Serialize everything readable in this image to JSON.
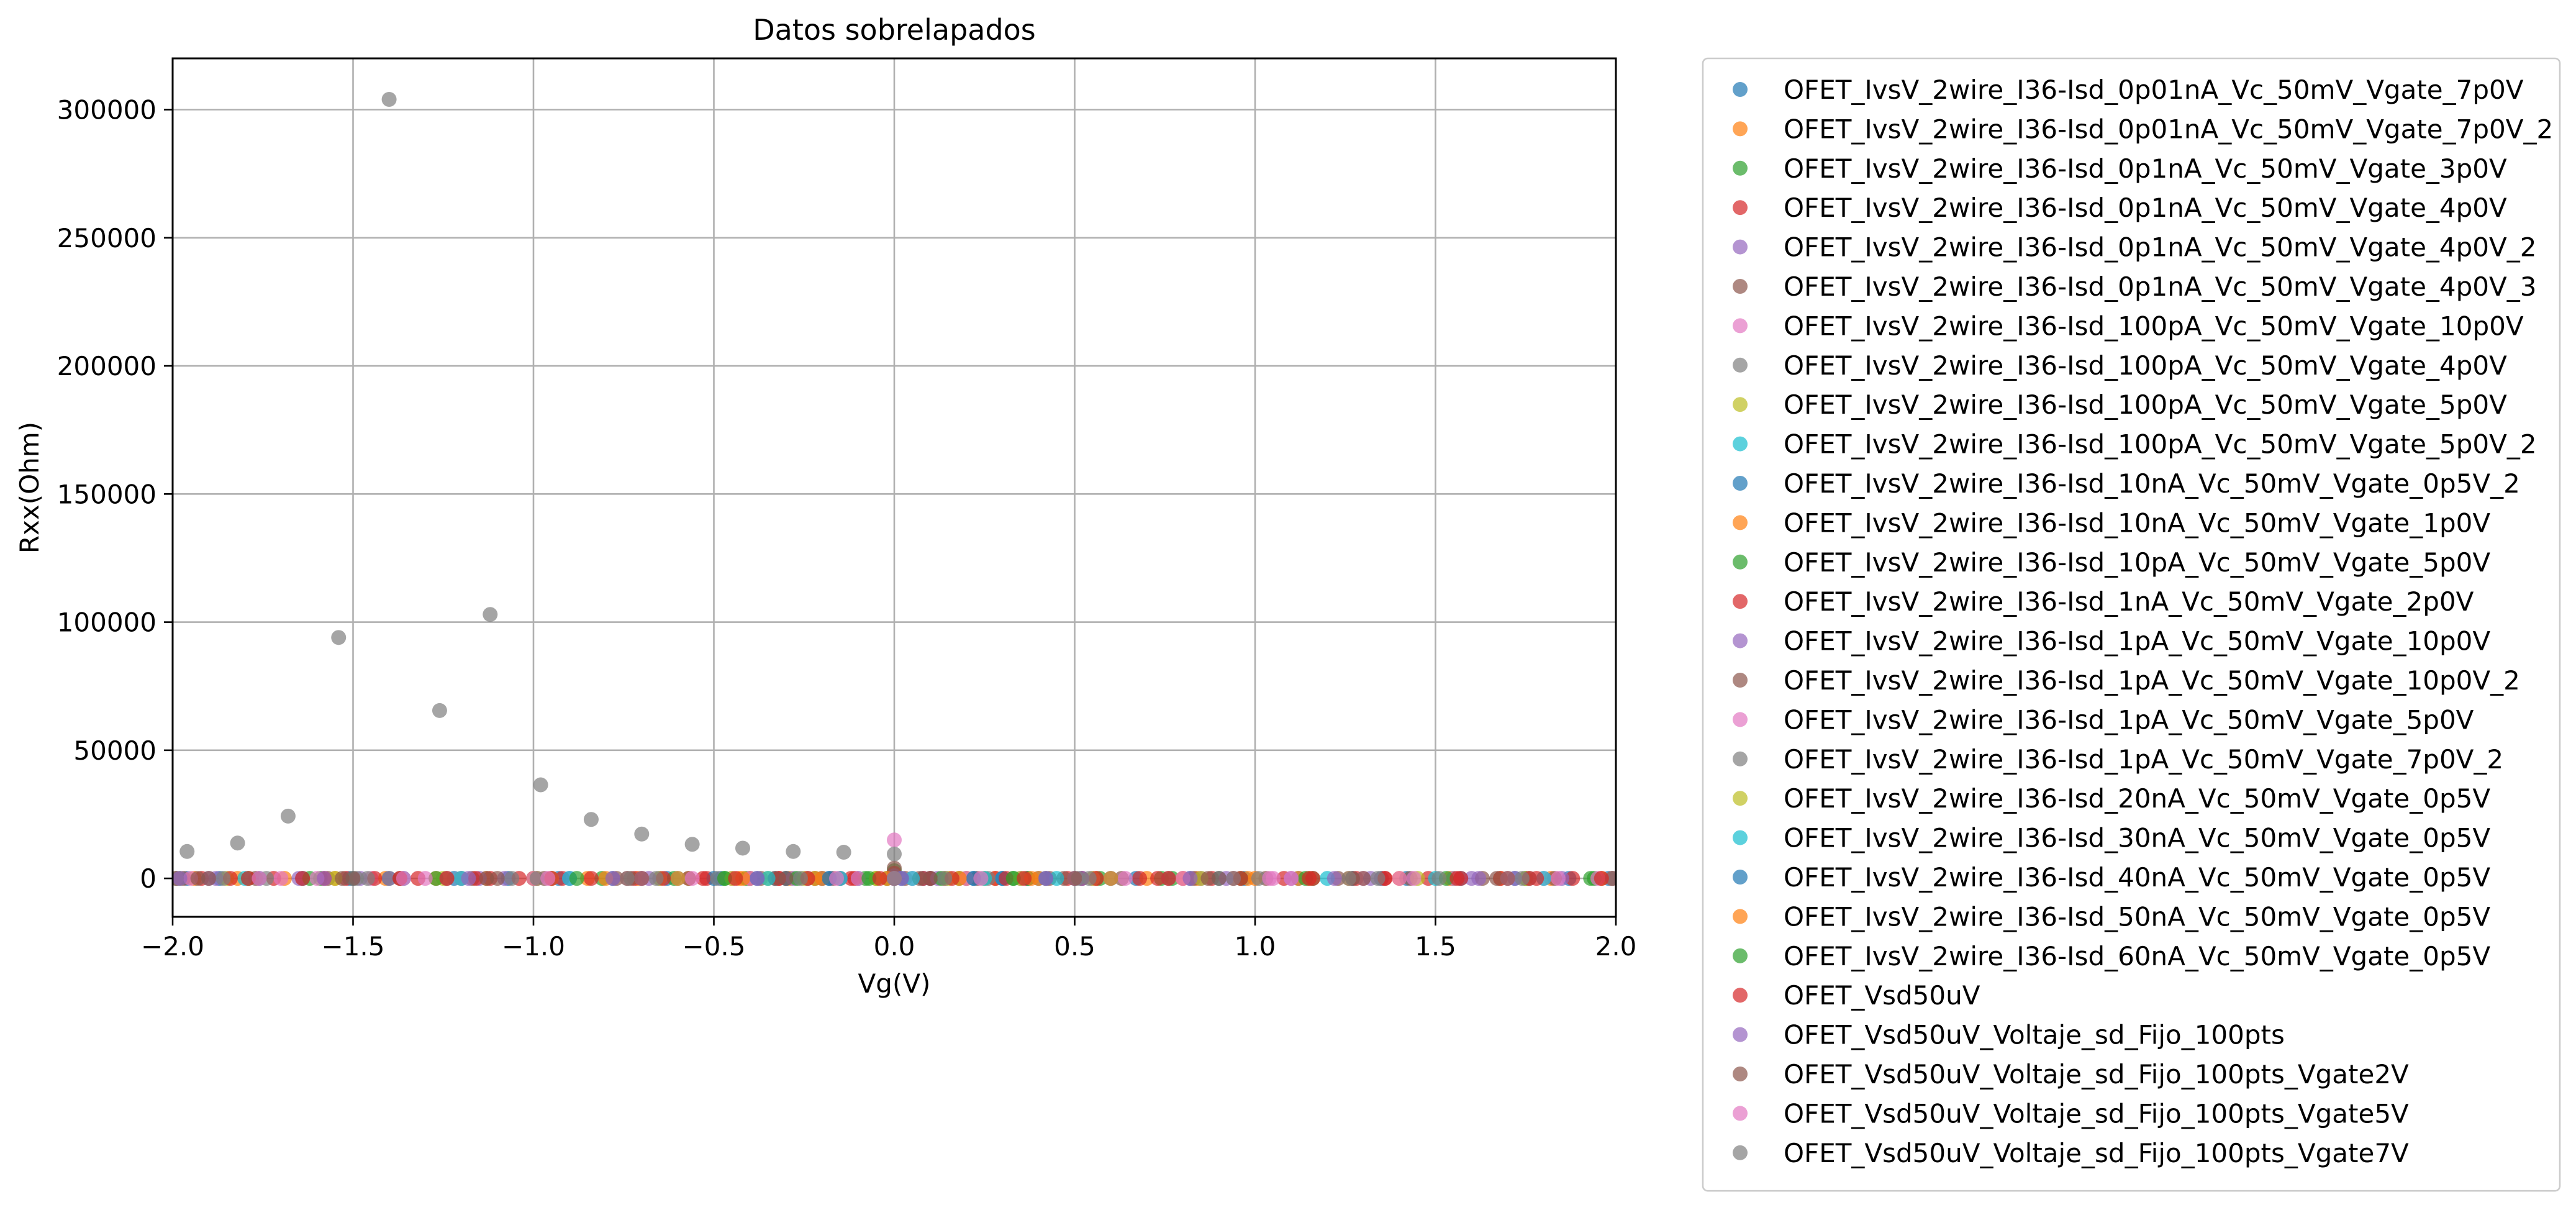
{
  "chart_data": {
    "type": "scatter",
    "title": "Datos sobrelapados",
    "xlabel": "Vg(V)",
    "ylabel": "Rxx(Ohm)",
    "xlim": [
      -2.0,
      2.0
    ],
    "ylim": [
      -15000,
      320000
    ],
    "xticks": [
      -2.0,
      -1.5,
      -1.0,
      -0.5,
      0.0,
      0.5,
      1.0,
      1.5,
      2.0
    ],
    "xtick_labels": [
      "−2.0",
      "−1.5",
      "−1.0",
      "−0.5",
      "0.0",
      "0.5",
      "1.0",
      "1.5",
      "2.0"
    ],
    "yticks": [
      0,
      50000,
      100000,
      150000,
      200000,
      250000,
      300000
    ],
    "ytick_labels": [
      "0",
      "50000",
      "100000",
      "150000",
      "200000",
      "250000",
      "300000"
    ],
    "grid": true,
    "legend_position": "outside-right",
    "series": [
      {
        "name": "OFET_IvsV_2wire_I36-Isd_0p01nA_Vc_50mV_Vgate_7p0V",
        "color": "#1f77b4",
        "x": [
          -1.96,
          -1.87,
          -1.76,
          -1.64,
          -1.51,
          -1.36,
          -1.22,
          -1.07,
          -0.93,
          -0.78,
          -0.63,
          -0.48,
          -0.33,
          -0.18,
          -0.05,
          0.0,
          0.08,
          0.22,
          0.37,
          0.52,
          0.67,
          0.82,
          0.97,
          1.12,
          1.27,
          1.42,
          1.57,
          1.72,
          1.87,
          1.98
        ],
        "y": [
          0,
          0,
          0,
          0,
          0,
          0,
          0,
          0,
          0,
          0,
          0,
          0,
          0,
          0,
          0,
          0,
          0,
          0,
          0,
          0,
          0,
          0,
          0,
          0,
          0,
          0,
          0,
          0,
          0,
          0
        ]
      },
      {
        "name": "OFET_IvsV_2wire_I36-Isd_0p01nA_Vc_50mV_Vgate_7p0V_2",
        "color": "#ff7f0e",
        "x": [
          -1.94,
          -1.82,
          -1.69,
          -1.55,
          -1.41,
          -1.27,
          -1.13,
          -0.99,
          -0.85,
          -0.71,
          -0.57,
          -0.43,
          -0.29,
          -0.15,
          0.0,
          0.14,
          0.28,
          0.42,
          0.56,
          0.7,
          0.84,
          0.98,
          1.12,
          1.26,
          1.4,
          1.54,
          1.68,
          1.82,
          1.96
        ],
        "y": [
          0,
          0,
          0,
          0,
          0,
          0,
          0,
          0,
          0,
          0,
          0,
          0,
          0,
          0,
          0,
          0,
          0,
          0,
          0,
          0,
          0,
          0,
          0,
          0,
          0,
          0,
          0,
          0,
          0
        ]
      },
      {
        "name": "OFET_IvsV_2wire_I36-Isd_0p1nA_Vc_50mV_Vgate_3p0V",
        "color": "#2ca02c",
        "x": [
          -1.98,
          -1.79,
          -1.59,
          -1.4,
          -1.2,
          -1.0,
          -0.81,
          -0.61,
          -0.41,
          -0.22,
          -0.02,
          0.0,
          0.18,
          0.37,
          0.57,
          0.77,
          0.96,
          1.16,
          1.35,
          1.55,
          1.75,
          1.94
        ],
        "y": [
          0,
          0,
          0,
          0,
          0,
          0,
          0,
          0,
          0,
          0,
          0,
          3000,
          0,
          0,
          0,
          0,
          0,
          0,
          0,
          0,
          0,
          0
        ]
      },
      {
        "name": "OFET_IvsV_2wire_I36-Isd_0p1nA_Vc_50mV_Vgate_4p0V",
        "color": "#d62728",
        "x": [
          -1.92,
          -1.72,
          -1.52,
          -1.32,
          -1.12,
          -0.92,
          -0.72,
          -0.52,
          -0.32,
          -0.12,
          0.0,
          0.08,
          0.28,
          0.48,
          0.68,
          0.88,
          1.08,
          1.28,
          1.48,
          1.68,
          1.88
        ],
        "y": [
          0,
          0,
          0,
          0,
          0,
          0,
          0,
          0,
          0,
          0,
          2000,
          0,
          0,
          0,
          0,
          0,
          0,
          0,
          0,
          0,
          0
        ]
      },
      {
        "name": "OFET_IvsV_2wire_I36-Isd_0p1nA_Vc_50mV_Vgate_4p0V_2",
        "color": "#9467bd",
        "x": [
          -1.9,
          -1.65,
          -1.4,
          -1.15,
          -0.9,
          -0.65,
          -0.4,
          -0.15,
          0.0,
          0.1,
          0.35,
          0.6,
          0.85,
          1.1,
          1.35,
          1.6,
          1.85
        ],
        "y": [
          0,
          0,
          0,
          0,
          0,
          0,
          0,
          0,
          1000,
          0,
          0,
          0,
          0,
          0,
          0,
          0,
          0
        ]
      },
      {
        "name": "OFET_IvsV_2wire_I36-Isd_0p1nA_Vc_50mV_Vgate_4p0V_3",
        "color": "#8c564b",
        "x": [
          -1.97,
          -1.77,
          -1.57,
          -1.37,
          -1.17,
          -0.97,
          -0.77,
          -0.57,
          -0.37,
          -0.17,
          0.0,
          0.03,
          0.23,
          0.43,
          0.63,
          0.83,
          1.03,
          1.23,
          1.43,
          1.63,
          1.83,
          1.99
        ],
        "y": [
          0,
          0,
          0,
          0,
          0,
          0,
          0,
          0,
          0,
          0,
          4000,
          0,
          0,
          0,
          0,
          0,
          0,
          0,
          0,
          0,
          0,
          0
        ]
      },
      {
        "name": "OFET_IvsV_2wire_I36-Isd_100pA_Vc_50mV_Vgate_10p0V",
        "color": "#e377c2",
        "x": [
          -1.95,
          -1.7,
          -1.45,
          -1.2,
          -0.95,
          -0.7,
          -0.45,
          -0.2,
          0.0,
          0.05,
          0.3,
          0.55,
          0.8,
          1.05,
          1.3,
          1.55,
          1.8
        ],
        "y": [
          0,
          0,
          0,
          0,
          0,
          0,
          0,
          0,
          15000,
          0,
          0,
          0,
          0,
          0,
          0,
          0,
          0
        ]
      },
      {
        "name": "OFET_IvsV_2wire_I36-Isd_100pA_Vc_50mV_Vgate_4p0V",
        "color": "#7f7f7f",
        "x": [
          -1.96,
          -1.82,
          -1.68,
          -1.54,
          -1.4,
          -1.26,
          -1.12,
          -0.98,
          -0.84,
          -0.7,
          -0.56,
          -0.42,
          -0.28,
          -0.14,
          0.0
        ],
        "y": [
          10500,
          13800,
          24300,
          94000,
          304000,
          65500,
          103000,
          36500,
          23000,
          17300,
          13300,
          11800,
          10500,
          10200,
          9500
        ]
      },
      {
        "name": "OFET_IvsV_2wire_I36-Isd_100pA_Vc_50mV_Vgate_5p0V",
        "color": "#bcbd22",
        "x": [
          -1.85,
          -1.55,
          -1.25,
          -0.95,
          -0.65,
          -0.35,
          -0.05,
          0.0,
          0.25,
          0.55,
          0.85,
          1.15,
          1.45,
          1.75
        ],
        "y": [
          0,
          0,
          0,
          0,
          0,
          0,
          0,
          0,
          0,
          0,
          0,
          0,
          0,
          0
        ]
      },
      {
        "name": "OFET_IvsV_2wire_I36-Isd_100pA_Vc_50mV_Vgate_5p0V_2",
        "color": "#17becf",
        "x": [
          -1.8,
          -1.5,
          -1.2,
          -0.9,
          -0.6,
          -0.3,
          0.0,
          0.3,
          0.6,
          0.9,
          1.2,
          1.5,
          1.8
        ],
        "y": [
          0,
          0,
          0,
          0,
          0,
          0,
          0,
          0,
          0,
          0,
          0,
          0,
          0
        ]
      },
      {
        "name": "OFET_IvsV_2wire_I36-Isd_10nA_Vc_50mV_Vgate_0p5V_2",
        "color": "#1f77b4",
        "x": [
          -0.5,
          -0.4,
          -0.3,
          -0.2,
          -0.1,
          0.0,
          0.1,
          0.2,
          0.3,
          0.4,
          0.5
        ],
        "y": [
          0,
          0,
          0,
          0,
          0,
          0,
          0,
          0,
          0,
          0,
          0
        ]
      },
      {
        "name": "OFET_IvsV_2wire_I36-Isd_10nA_Vc_50mV_Vgate_1p0V",
        "color": "#ff7f0e",
        "x": [
          -1.0,
          -0.8,
          -0.6,
          -0.4,
          -0.2,
          0.0,
          0.2,
          0.4,
          0.6,
          0.8,
          1.0
        ],
        "y": [
          0,
          0,
          0,
          0,
          0,
          0,
          0,
          0,
          0,
          0,
          0
        ]
      },
      {
        "name": "OFET_IvsV_2wire_I36-Isd_10pA_Vc_50mV_Vgate_5p0V",
        "color": "#2ca02c",
        "x": [
          -1.99,
          -1.62,
          -1.27,
          -0.88,
          -0.47,
          -0.08,
          0.0,
          0.33,
          0.74,
          1.14,
          1.53,
          1.93
        ],
        "y": [
          0,
          0,
          0,
          0,
          0,
          0,
          0,
          0,
          0,
          0,
          0,
          0
        ]
      },
      {
        "name": "OFET_IvsV_2wire_I36-Isd_1nA_Vc_50mV_Vgate_2p0V",
        "color": "#d62728",
        "x": [
          -1.99,
          -1.79,
          -1.58,
          -1.37,
          -1.16,
          -0.95,
          -0.74,
          -0.53,
          -0.32,
          -0.11,
          0.0,
          0.1,
          0.31,
          0.52,
          0.73,
          0.94,
          1.15,
          1.36,
          1.57,
          1.78,
          1.99
        ],
        "y": [
          0,
          0,
          0,
          0,
          0,
          0,
          0,
          0,
          0,
          0,
          0,
          0,
          0,
          0,
          0,
          0,
          0,
          0,
          0,
          0,
          0
        ]
      },
      {
        "name": "OFET_IvsV_2wire_I36-Isd_1pA_Vc_50mV_Vgate_10p0V",
        "color": "#9467bd",
        "x": [
          -1.88,
          -1.48,
          -1.08,
          -0.68,
          -0.28,
          0.0,
          0.12,
          0.52,
          0.92,
          1.32,
          1.72
        ],
        "y": [
          0,
          0,
          0,
          0,
          0,
          0,
          0,
          0,
          0,
          0,
          0
        ]
      },
      {
        "name": "OFET_IvsV_2wire_I36-Isd_1pA_Vc_50mV_Vgate_10p0V_2",
        "color": "#8c564b",
        "x": [
          -1.93,
          -1.53,
          -1.13,
          -0.73,
          -0.33,
          0.0,
          0.07,
          0.47,
          0.87,
          1.27,
          1.67
        ],
        "y": [
          0,
          0,
          0,
          0,
          0,
          0,
          0,
          0,
          0,
          0,
          0
        ]
      },
      {
        "name": "OFET_IvsV_2wire_I36-Isd_1pA_Vc_50mV_Vgate_5p0V",
        "color": "#e377c2",
        "x": [
          -1.6,
          -1.3,
          -1.0,
          -0.7,
          -0.4,
          -0.1,
          0.0,
          0.2,
          0.5,
          0.8,
          1.1,
          1.4,
          1.7,
          1.95
        ],
        "y": [
          0,
          0,
          0,
          0,
          0,
          0,
          0,
          0,
          0,
          0,
          0,
          0,
          0,
          0
        ]
      },
      {
        "name": "OFET_IvsV_2wire_I36-Isd_1pA_Vc_50mV_Vgate_7p0V_2",
        "color": "#7f7f7f",
        "x": [
          -1.99,
          -1.74,
          -1.49,
          -1.24,
          -0.99,
          -0.74,
          -0.49,
          -0.24,
          0.0,
          0.26,
          0.51,
          0.76,
          1.01,
          1.26,
          1.51,
          1.76,
          1.99
        ],
        "y": [
          0,
          0,
          0,
          0,
          0,
          0,
          0,
          0,
          0,
          0,
          0,
          0,
          0,
          0,
          0,
          0,
          0
        ]
      },
      {
        "name": "OFET_IvsV_2wire_I36-Isd_20nA_Vc_50mV_Vgate_0p5V",
        "color": "#bcbd22",
        "x": [
          -0.45,
          -0.25,
          -0.05,
          0.15,
          0.35
        ],
        "y": [
          0,
          0,
          0,
          0,
          0
        ]
      },
      {
        "name": "OFET_IvsV_2wire_I36-Isd_30nA_Vc_50mV_Vgate_0p5V",
        "color": "#17becf",
        "x": [
          -0.35,
          -0.15,
          0.05,
          0.25,
          0.45
        ],
        "y": [
          0,
          0,
          0,
          0,
          0
        ]
      },
      {
        "name": "OFET_IvsV_2wire_I36-Isd_40nA_Vc_50mV_Vgate_0p5V",
        "color": "#1f77b4",
        "x": [
          -0.38,
          -0.18,
          0.02,
          0.22,
          0.42
        ],
        "y": [
          0,
          0,
          0,
          0,
          0
        ]
      },
      {
        "name": "OFET_IvsV_2wire_I36-Isd_50nA_Vc_50mV_Vgate_0p5V",
        "color": "#ff7f0e",
        "x": [
          -0.42,
          -0.22,
          -0.02,
          0.18,
          0.38
        ],
        "y": [
          0,
          0,
          0,
          0,
          0
        ]
      },
      {
        "name": "OFET_IvsV_2wire_I36-Isd_60nA_Vc_50mV_Vgate_0p5V",
        "color": "#2ca02c",
        "x": [
          -0.47,
          -0.27,
          -0.07,
          0.13,
          0.33
        ],
        "y": [
          0,
          0,
          0,
          0,
          0
        ]
      },
      {
        "name": "OFET_Vsd50uV",
        "color": "#d62728",
        "x": [
          -1.84,
          -1.64,
          -1.44,
          -1.24,
          -1.04,
          -0.84,
          -0.64,
          -0.44,
          -0.24,
          -0.04,
          0.0,
          0.16,
          0.36,
          0.56,
          0.76,
          0.96,
          1.16,
          1.36,
          1.56,
          1.76,
          1.96
        ],
        "y": [
          0,
          0,
          0,
          0,
          0,
          0,
          0,
          0,
          0,
          0,
          0,
          0,
          0,
          0,
          0,
          0,
          0,
          0,
          0,
          0,
          0
        ]
      },
      {
        "name": "OFET_Vsd50uV_Voltaje_sd_Fijo_100pts",
        "color": "#9467bd",
        "x": [
          -1.98,
          -1.58,
          -1.18,
          -0.78,
          -0.38,
          0.0,
          0.02,
          0.42,
          0.82,
          1.22,
          1.62
        ],
        "y": [
          0,
          0,
          0,
          0,
          0,
          0,
          0,
          0,
          0,
          0,
          0
        ]
      },
      {
        "name": "OFET_Vsd50uV_Voltaje_sd_Fijo_100pts_Vgate2V",
        "color": "#8c564b",
        "x": [
          -1.9,
          -1.5,
          -1.1,
          -0.7,
          -0.3,
          0.0,
          0.1,
          0.5,
          0.9,
          1.3,
          1.7
        ],
        "y": [
          0,
          0,
          0,
          0,
          0,
          0,
          0,
          0,
          0,
          0,
          0
        ]
      },
      {
        "name": "OFET_Vsd50uV_Voltaje_sd_Fijo_100pts_Vgate5V",
        "color": "#e377c2",
        "x": [
          -1.76,
          -1.36,
          -0.96,
          -0.56,
          -0.16,
          0.0,
          0.24,
          0.64,
          1.04,
          1.44,
          1.84
        ],
        "y": [
          0,
          0,
          0,
          0,
          0,
          0,
          0,
          0,
          0,
          0,
          0
        ]
      },
      {
        "name": "OFET_Vsd50uV_Voltaje_sd_Fijo_100pts_Vgate7V",
        "color": "#7f7f7f",
        "x": [
          -1.86,
          -1.46,
          -1.06,
          -0.66,
          -0.26,
          0.0,
          0.14,
          0.54,
          0.94,
          1.34,
          1.74
        ],
        "y": [
          0,
          0,
          0,
          0,
          0,
          0,
          0,
          0,
          0,
          0,
          0
        ]
      }
    ]
  }
}
